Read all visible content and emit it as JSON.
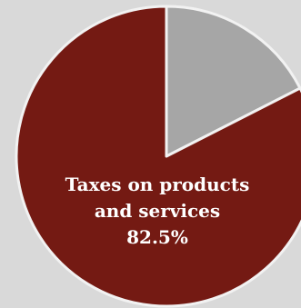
{
  "chart_data": {
    "type": "pie",
    "title": "",
    "start_angle_deg": 0,
    "direction": "clockwise",
    "slices": [
      {
        "label": "",
        "value": 17.5,
        "color": "#a6a6a6",
        "value_label": ""
      },
      {
        "label": "Taxes on products and services",
        "label_lines": [
          "Taxes on products",
          "and services"
        ],
        "value": 82.5,
        "color": "#741a13",
        "value_label": "82.5%"
      }
    ],
    "slice_border_color": "#f2f2f2",
    "label_color": "#ffffff"
  }
}
